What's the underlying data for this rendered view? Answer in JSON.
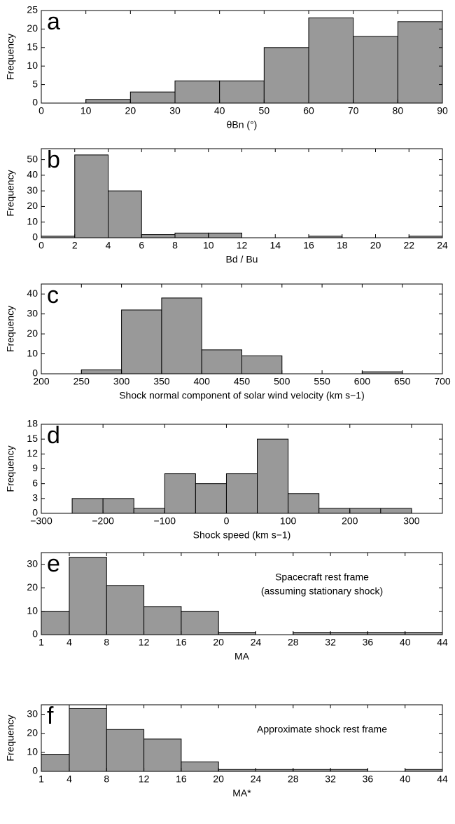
{
  "chart_data": [
    {
      "type": "histogram",
      "panel_label": "a",
      "ylabel": "Frequency",
      "xlabel": "θBn (°)",
      "color": "#999999",
      "bins": [
        0,
        10,
        20,
        30,
        40,
        50,
        60,
        70,
        80,
        90
      ],
      "counts": [
        0,
        1,
        3,
        6,
        6,
        15,
        23,
        18,
        22
      ],
      "xlim": [
        0,
        90
      ],
      "xticks": [
        0,
        10,
        20,
        30,
        40,
        50,
        60,
        70,
        80,
        90
      ],
      "ylim": [
        0,
        25
      ],
      "yticks": [
        0,
        5,
        10,
        15,
        20,
        25
      ]
    },
    {
      "type": "histogram",
      "panel_label": "b",
      "ylabel": "Frequency",
      "xlabel": "Bd / Bu",
      "color": "#999999",
      "bins": [
        0,
        2,
        4,
        6,
        8,
        10,
        12,
        14,
        16,
        18,
        20,
        22,
        24
      ],
      "counts": [
        1,
        53,
        30,
        2,
        3,
        3,
        0,
        0,
        1,
        0,
        0,
        1
      ],
      "xlim": [
        0,
        24
      ],
      "xticks": [
        0,
        2,
        4,
        6,
        8,
        10,
        12,
        14,
        16,
        18,
        20,
        22,
        24
      ],
      "ylim": [
        0,
        57
      ],
      "yticks": [
        0,
        10,
        20,
        30,
        40,
        50
      ]
    },
    {
      "type": "histogram",
      "panel_label": "c",
      "ylabel": "Frequency",
      "xlabel": "Shock normal component of solar wind velocity (km s−1)",
      "color": "#999999",
      "bins": [
        200,
        250,
        300,
        350,
        400,
        450,
        500,
        550,
        600,
        650,
        700
      ],
      "counts": [
        0,
        2,
        32,
        38,
        12,
        9,
        0,
        0,
        1,
        0
      ],
      "xlim": [
        200,
        700
      ],
      "xticks": [
        200,
        250,
        300,
        350,
        400,
        450,
        500,
        550,
        600,
        650,
        700
      ],
      "ylim": [
        0,
        45
      ],
      "yticks": [
        0,
        10,
        20,
        30,
        40
      ]
    },
    {
      "type": "histogram",
      "panel_label": "d",
      "ylabel": "Frequency",
      "xlabel": "Shock speed (km s−1)",
      "color": "#999999",
      "bins": [
        -250,
        -200,
        -150,
        -100,
        -50,
        0,
        50,
        100,
        150,
        200,
        250,
        300
      ],
      "counts": [
        3,
        3,
        1,
        8,
        6,
        8,
        15,
        4,
        1,
        1,
        1
      ],
      "xlim": [
        -300,
        350
      ],
      "xticks": [
        {
          "value": -300,
          "label": "−300"
        },
        {
          "value": -200,
          "label": "−200"
        },
        {
          "value": -100,
          "label": "−100"
        },
        0,
        100,
        200,
        300
      ],
      "ylim": [
        0,
        18
      ],
      "yticks": [
        0,
        3,
        6,
        9,
        12,
        15,
        18
      ]
    },
    {
      "type": "histogram",
      "panel_label": "e",
      "xlabel": "MA",
      "color": "#999999",
      "annotation": [
        "Spacecraft rest frame",
        "(assuming stationary shock)"
      ],
      "bins": [
        1,
        4,
        8,
        12,
        16,
        20,
        24,
        28,
        32,
        36,
        40,
        44
      ],
      "counts": [
        10,
        33,
        21,
        12,
        10,
        1,
        0,
        1,
        1,
        1,
        1
      ],
      "xlim": [
        1,
        44
      ],
      "xticks": [
        1,
        4,
        8,
        12,
        16,
        20,
        24,
        28,
        32,
        36,
        40,
        44
      ],
      "ylim": [
        0,
        35
      ],
      "yticks": [
        0,
        10,
        20,
        30
      ]
    },
    {
      "type": "histogram",
      "panel_label": "f",
      "ylabel": "Frequency",
      "xlabel": "MA*",
      "color": "#999999",
      "annotation": [
        "Approximate shock rest frame"
      ],
      "bins": [
        1,
        4,
        8,
        12,
        16,
        20,
        24,
        28,
        32,
        36,
        40,
        44
      ],
      "counts": [
        9,
        33,
        22,
        17,
        5,
        1,
        1,
        1,
        1,
        0,
        1
      ],
      "xlim": [
        1,
        44
      ],
      "xticks": [
        1,
        4,
        8,
        12,
        16,
        20,
        24,
        28,
        32,
        36,
        40,
        44
      ],
      "ylim": [
        0,
        35
      ],
      "yticks": [
        0,
        10,
        20,
        30
      ]
    }
  ]
}
